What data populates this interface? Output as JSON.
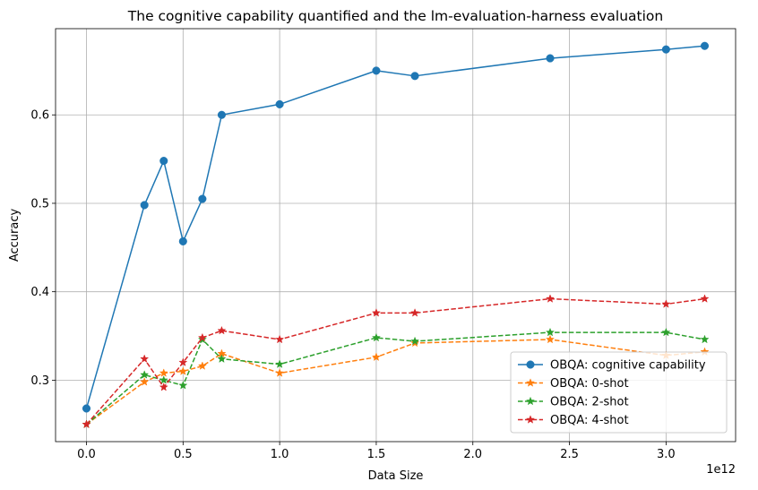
{
  "chart_data": {
    "type": "line",
    "title": "The cognitive capability quantified and the lm-evaluation-harness evaluation",
    "xlabel": "Data Size",
    "ylabel": "Accuracy",
    "x_offset_label": "1e12",
    "xlim": [
      -0.16,
      3.36
    ],
    "ylim": [
      0.2305,
      0.6975
    ],
    "x_ticks": [
      0.0,
      0.5,
      1.0,
      1.5,
      2.0,
      2.5,
      3.0
    ],
    "x_tick_labels": [
      "0.0",
      "0.5",
      "1.0",
      "1.5",
      "2.0",
      "2.5",
      "3.0"
    ],
    "y_ticks": [
      0.3,
      0.4,
      0.5,
      0.6
    ],
    "y_tick_labels": [
      "0.3",
      "0.4",
      "0.5",
      "0.6"
    ],
    "grid": true,
    "legend_position": "lower-right",
    "x": [
      0.0,
      0.3,
      0.4,
      0.5,
      0.6,
      0.7,
      1.0,
      1.5,
      1.7,
      2.4,
      3.0,
      3.2
    ],
    "series": [
      {
        "name": "OBQA: cognitive capability",
        "color": "#1f77b4",
        "linestyle": "solid",
        "marker": "circle",
        "values": [
          0.268,
          0.498,
          0.548,
          0.457,
          0.505,
          0.6,
          0.612,
          0.65,
          0.644,
          0.664,
          0.674,
          0.678
        ]
      },
      {
        "name": "OBQA: 0-shot",
        "color": "#ff7f0e",
        "linestyle": "dashed",
        "marker": "star",
        "values": [
          0.25,
          0.298,
          0.308,
          0.31,
          0.316,
          0.33,
          0.308,
          0.326,
          0.342,
          0.346,
          0.328,
          0.332
        ]
      },
      {
        "name": "OBQA: 2-shot",
        "color": "#2ca02c",
        "linestyle": "dashed",
        "marker": "star",
        "values": [
          0.25,
          0.306,
          0.3,
          0.294,
          0.346,
          0.324,
          0.318,
          0.348,
          0.344,
          0.354,
          0.354,
          0.346
        ]
      },
      {
        "name": "OBQA: 4-shot",
        "color": "#d62728",
        "linestyle": "dashed",
        "marker": "star",
        "values": [
          0.25,
          0.324,
          0.292,
          0.32,
          0.348,
          0.356,
          0.346,
          0.376,
          0.376,
          0.392,
          0.386,
          0.392
        ]
      }
    ]
  }
}
